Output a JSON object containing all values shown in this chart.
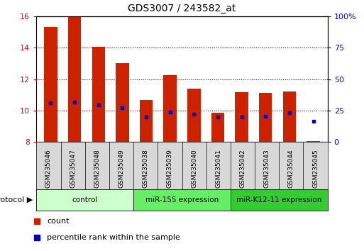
{
  "title": "GDS3007 / 243582_at",
  "samples": [
    "GSM235046",
    "GSM235047",
    "GSM235048",
    "GSM235049",
    "GSM235038",
    "GSM235039",
    "GSM235040",
    "GSM235041",
    "GSM235042",
    "GSM235043",
    "GSM235044",
    "GSM235045"
  ],
  "bar_heights": [
    15.3,
    16.0,
    14.05,
    13.0,
    10.65,
    12.25,
    11.4,
    9.85,
    11.15,
    11.1,
    11.2,
    8.05
  ],
  "bar_bottom": 8.0,
  "blue_dot_values": [
    10.5,
    10.55,
    10.35,
    10.15,
    9.6,
    9.9,
    9.75,
    9.6,
    9.6,
    9.65,
    9.85,
    9.3
  ],
  "ylim_left": [
    8,
    16
  ],
  "ylim_right": [
    0,
    100
  ],
  "yticks_left": [
    8,
    10,
    12,
    14,
    16
  ],
  "yticks_right": [
    0,
    25,
    50,
    75,
    100
  ],
  "bar_color": "#cc2200",
  "dot_color": "#0000cc",
  "bg_color": "#ffffff",
  "groups": [
    {
      "label": "control",
      "start": 0,
      "end": 4,
      "color": "#ccffcc"
    },
    {
      "label": "miR-155 expression",
      "start": 4,
      "end": 8,
      "color": "#66ee66"
    },
    {
      "label": "miR-K12-11 expression",
      "start": 8,
      "end": 12,
      "color": "#33cc33"
    }
  ],
  "bar_width": 0.55,
  "figsize": [
    5.13,
    3.54
  ],
  "dpi": 100
}
